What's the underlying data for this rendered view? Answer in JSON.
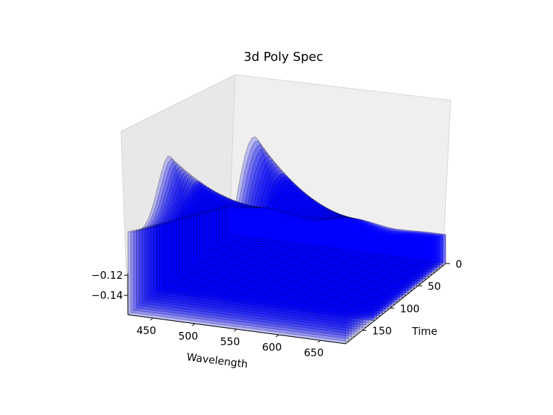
{
  "chart_data": {
    "type": "area",
    "title": "3d Poly Spec",
    "xlabel": "Wavelength",
    "ylabel": "Time",
    "zlabel": "",
    "x_ticks": [
      450,
      500,
      550,
      600,
      650
    ],
    "y_ticks": [
      0,
      50,
      100,
      150
    ],
    "z_ticks_visible": [
      -0.14,
      -0.12
    ],
    "z_tick_labels": [
      "−0.14",
      "−0.12"
    ],
    "xlim": [
      420,
      680
    ],
    "ylim": [
      0,
      180
    ],
    "series_color": "#0000ff",
    "edge_color": "#000000",
    "grid": true,
    "legend": "none",
    "spectrum_features": {
      "peak1_wavelength": 470,
      "trough_wavelength": 525,
      "peak2_wavelength": 570,
      "trough2_wavelength": 620
    },
    "time_slices_count": 36
  }
}
